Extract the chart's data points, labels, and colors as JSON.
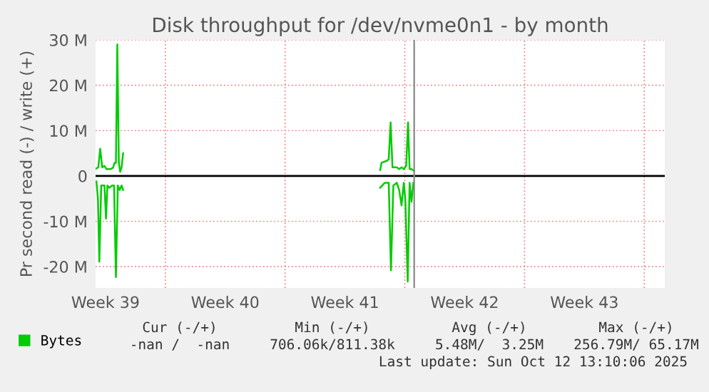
{
  "chart_data": {
    "type": "line",
    "title": "Disk throughput for /dev/nvme0n1 - by month",
    "ylabel": "Pr second read (-) / write (+)",
    "xlim": [
      "2025-09-23T22:05",
      "2025-10-27T04:48"
    ],
    "ylim": [
      -24.7,
      30
    ],
    "xticks": [
      {
        "value": "2025-09-24T12:00",
        "label": "Week 39"
      },
      {
        "value": "2025-09-28",
        "label": null
      },
      {
        "value": "2025-10-01T12:00",
        "label": "Week 40"
      },
      {
        "value": "2025-10-05",
        "label": null
      },
      {
        "value": "2025-10-08T12:00",
        "label": "Week 41"
      },
      {
        "value": "2025-10-12",
        "label": null
      },
      {
        "value": "2025-10-15T12:00",
        "label": "Week 42"
      },
      {
        "value": "2025-10-19",
        "label": null
      },
      {
        "value": "2025-10-22T12:00",
        "label": "Week 43"
      },
      {
        "value": "2025-10-26",
        "label": null
      }
    ],
    "yticks": [
      {
        "value": -20,
        "label": "-20 M"
      },
      {
        "value": -10,
        "label": "-10 M"
      },
      {
        "value": 0,
        "label": "0"
      },
      {
        "value": 10,
        "label": "10 M"
      },
      {
        "value": 20,
        "label": "20 M"
      },
      {
        "value": 30,
        "label": "30 M"
      }
    ],
    "grid": true,
    "legend": "bottom left",
    "series": [
      {
        "name": "Bytes",
        "color": "#00cc00",
        "x": [
          "2025-09-23T22:34",
          "2025-09-24T01:55",
          "2025-09-24T04:34",
          "2025-09-24T07:26",
          "2025-09-24T10:34",
          "2025-09-24T13:26",
          "2025-09-24T18:43",
          "2025-09-24T22:34",
          "2025-09-25T00:43",
          "2025-09-25T02:38",
          "2025-09-25T04:34",
          "2025-09-25T06:43",
          "2025-09-25T08:38",
          "2025-09-25T10:34",
          "2025-09-25T12:43",
          "2025-10-03T00:00",
          "2025-10-10T13:26",
          "2025-10-10T15:22",
          "2025-10-10T23:31",
          "2025-10-11T01:26",
          "2025-10-11T04:05",
          "2025-10-11T06:43",
          "2025-10-11T12:43",
          "2025-10-11T16:05",
          "2025-10-11T19:26",
          "2025-10-11T22:34",
          "2025-10-12T01:55",
          "2025-10-12T04:34",
          "2025-10-12T06:43",
          "2025-10-12T09:22",
          "2025-10-12T13:00"
        ],
        "values": [
          1.6,
          1.9,
          6.0,
          1.9,
          2.2,
          1.5,
          1.5,
          1.8,
          2.9,
          2.9,
          29,
          2.9,
          0.9,
          1.9,
          5.0,
          null,
          1.3,
          2.9,
          3.4,
          3.7,
          11.8,
          1.9,
          1.9,
          1.5,
          1.9,
          1.5,
          2.2,
          11.8,
          1.5,
          1.5,
          1.1
        ]
      },
      {
        "color": "#00cc00",
        "x": [
          "2025-09-23T23:17",
          "2025-09-24T01:26",
          "2025-09-24T03:22",
          "2025-09-24T06:00",
          "2025-09-24T07:55",
          "2025-09-24T10:34",
          "2025-09-24T12:43",
          "2025-09-24T14:38",
          "2025-09-24T17:17",
          "2025-09-24T21:22",
          "2025-09-25T00:00",
          "2025-09-25T02:38",
          "2025-09-25T05:17",
          "2025-09-25T07:55",
          "2025-09-25T10:34",
          "2025-09-25T12:43",
          "2025-10-03T00:00",
          "2025-10-10T13:26",
          "2025-10-10T19:55",
          "2025-10-11T01:26",
          "2025-10-11T04:34",
          "2025-10-11T07:55",
          "2025-10-11T12:43",
          "2025-10-11T16:05",
          "2025-10-11T19:26",
          "2025-10-11T22:34",
          "2025-10-12T00:43",
          "2025-10-12T04:05",
          "2025-10-12T06:43",
          "2025-10-12T09:22",
          "2025-10-12T12:00"
        ],
        "values": [
          -1.2,
          -5.2,
          -18.9,
          -2.1,
          -2.1,
          -2.1,
          -9.4,
          -2.1,
          -2.6,
          -2.1,
          -2.1,
          -22.3,
          -2.1,
          -3.1,
          -2.1,
          -3.1,
          null,
          -2.6,
          -1.5,
          -1.5,
          -20.8,
          -2.1,
          -1.5,
          -3.1,
          -6.5,
          -1.5,
          -5.2,
          -23.3,
          -1.5,
          -5.7,
          -1.5
        ]
      }
    ],
    "ref_lines": [
      {
        "axis": "y",
        "value": 0,
        "color": "#000000"
      },
      {
        "axis": "x",
        "value": "2025-10-12T13:10",
        "color": "#888888"
      }
    ],
    "annotations": [
      "Cur (-/+)",
      "Min (-/+)",
      "Avg (-/+)",
      "Max (-/+)",
      "-nan /  -nan",
      "706.06k/811.38k",
      "5.48M/  3.25M",
      "256.79M/ 65.17M",
      "Last update: Sun Oct 12 13:10:06 2025"
    ]
  }
}
